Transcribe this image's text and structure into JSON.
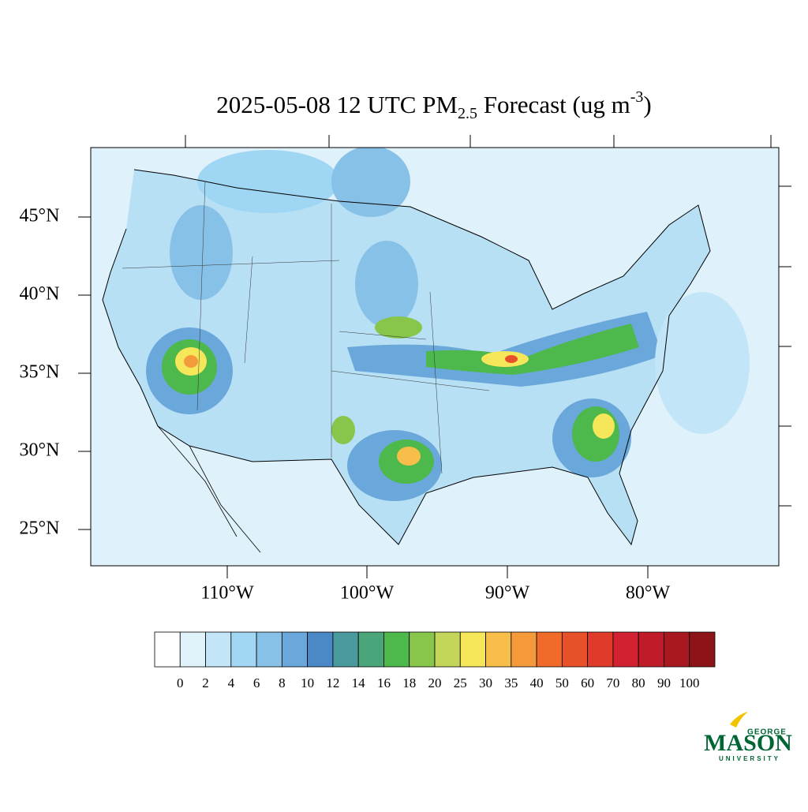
{
  "title": {
    "main": "2025-05-08 12 UTC PM",
    "subscript": "2.5",
    "middle": " Forecast (ug m",
    "superscript": "-3",
    "end": ")"
  },
  "map": {
    "lat_labels": [
      "45°N",
      "40°N",
      "35°N",
      "30°N",
      "25°N"
    ],
    "lon_labels": [
      "110°W",
      "100°W",
      "90°W",
      "80°W"
    ]
  },
  "colorbar": {
    "levels": [
      0,
      2,
      4,
      6,
      8,
      10,
      12,
      14,
      16,
      18,
      20,
      25,
      30,
      35,
      40,
      50,
      60,
      70,
      80,
      90,
      100
    ],
    "colors": [
      "#ffffff",
      "#e0f3fb",
      "#c2e6f7",
      "#a2d7f3",
      "#88c1e7",
      "#6aa7da",
      "#4a89c6",
      "#4a999d",
      "#4aa67a",
      "#4db84b",
      "#87c54b",
      "#c4d65a",
      "#f6e65a",
      "#f7bf4a",
      "#f59a3a",
      "#f06a2a",
      "#e8502a",
      "#df3a2a",
      "#d22130",
      "#bf1b28",
      "#a81820",
      "#8c1418"
    ]
  },
  "logo": {
    "top": "GEORGE",
    "main": "MASON",
    "bottom": "UNIVERSITY"
  }
}
